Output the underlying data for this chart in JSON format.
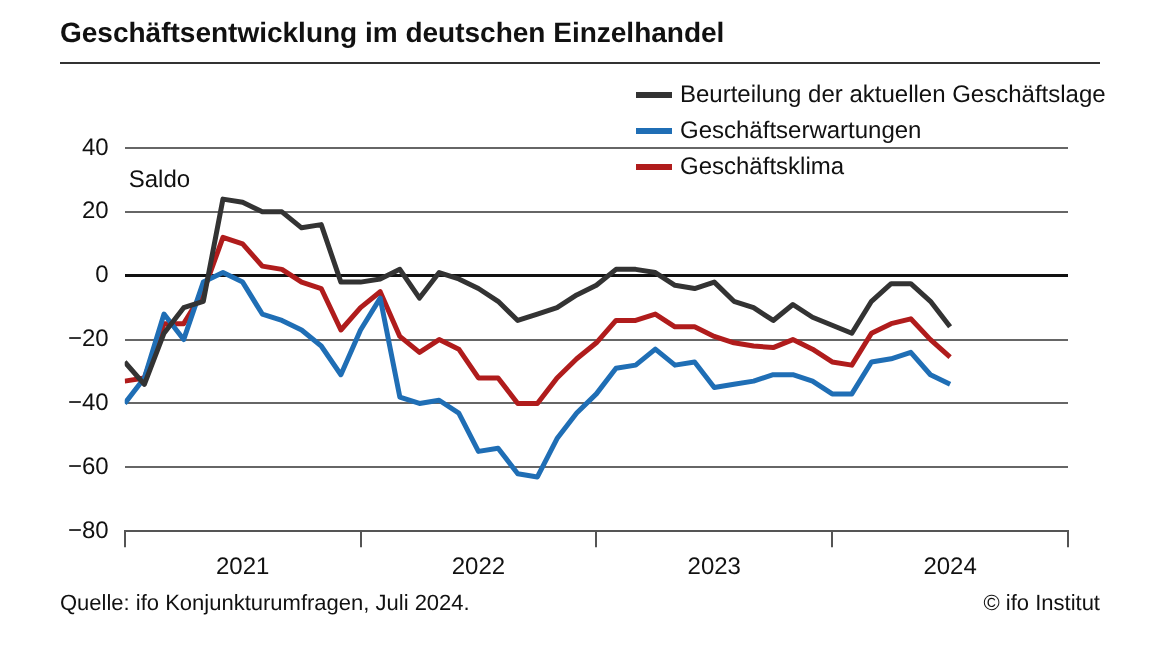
{
  "chart_data": {
    "type": "line",
    "title": "Geschäftsentwicklung im deutschen Einzelhandel",
    "ylabel": "Saldo",
    "x": [
      "2021-01",
      "2021-02",
      "2021-03",
      "2021-04",
      "2021-05",
      "2021-06",
      "2021-07",
      "2021-08",
      "2021-09",
      "2021-10",
      "2021-11",
      "2021-12",
      "2022-01",
      "2022-02",
      "2022-03",
      "2022-04",
      "2022-05",
      "2022-06",
      "2022-07",
      "2022-08",
      "2022-09",
      "2022-10",
      "2022-11",
      "2022-12",
      "2023-01",
      "2023-02",
      "2023-03",
      "2023-04",
      "2023-05",
      "2023-06",
      "2023-07",
      "2023-08",
      "2023-09",
      "2023-10",
      "2023-11",
      "2023-12",
      "2024-01",
      "2024-02",
      "2024-03",
      "2024-04",
      "2024-05",
      "2024-06",
      "2024-07"
    ],
    "series": [
      {
        "name": "Beurteilung der aktuellen Geschäftslage",
        "color": "#333333",
        "values": [
          -27,
          -34,
          -18,
          -10,
          -8,
          24,
          23,
          20,
          20,
          15,
          16,
          -2,
          -2,
          -1,
          2,
          -7,
          1,
          -1,
          -4,
          -8,
          -14,
          -12,
          -10,
          -6,
          -3,
          2,
          2,
          1,
          -3,
          -4,
          -2,
          -8,
          -10,
          -14,
          -9,
          -13,
          -15.5,
          -18,
          -8,
          -2.5,
          -2.5,
          -8,
          -16
        ]
      },
      {
        "name": "Geschäftserwartungen",
        "color": "#1f6eb5",
        "values": [
          -40,
          -32,
          -12,
          -20,
          -2,
          1,
          -2,
          -12,
          -14,
          -17,
          -22,
          -31,
          -17,
          -7,
          -38,
          -40,
          -39,
          -43,
          -55,
          -54,
          -62,
          -63,
          -51,
          -43,
          -37,
          -29,
          -28,
          -23,
          -28,
          -27,
          -35,
          -34,
          -33,
          -31,
          -31,
          -33,
          -37,
          -37,
          -27,
          -26,
          -24,
          -31,
          -34
        ]
      },
      {
        "name": "Geschäftsklima",
        "color": "#b01c1c",
        "values": [
          -33,
          -32,
          -15,
          -15,
          -5,
          12,
          10,
          3,
          2,
          -2,
          -4,
          -17,
          -10,
          -5,
          -19,
          -24,
          -20,
          -23,
          -32,
          -32,
          -40,
          -40,
          -32,
          -26,
          -21,
          -14,
          -14,
          -12,
          -16,
          -16,
          -19,
          -21,
          -22,
          -22.5,
          -20,
          -23,
          -27,
          -28,
          -18,
          -15,
          -13.5,
          -20,
          -25.5
        ]
      }
    ],
    "xlim": [
      "2021-01",
      "2025-01"
    ],
    "xticks": [
      {
        "value": "2021-01",
        "label": null
      },
      {
        "value": "2021-07",
        "label": "2021"
      },
      {
        "value": "2022-01",
        "label": null
      },
      {
        "value": "2022-07",
        "label": "2022"
      },
      {
        "value": "2023-01",
        "label": null
      },
      {
        "value": "2023-07",
        "label": "2023"
      },
      {
        "value": "2024-01",
        "label": null
      },
      {
        "value": "2024-07",
        "label": "2024"
      },
      {
        "value": "2025-01",
        "label": null
      }
    ],
    "ylim": [
      -80,
      40
    ],
    "yticks": [
      -80,
      -60,
      -40,
      -20,
      0,
      20,
      40
    ],
    "grid": "y",
    "legend": "top right",
    "marker": "none",
    "line_style": "solid",
    "annotations": [
      "Quelle: ifo Konjunkturumfragen, Juli 2024.",
      "© ifo Institut"
    ]
  }
}
